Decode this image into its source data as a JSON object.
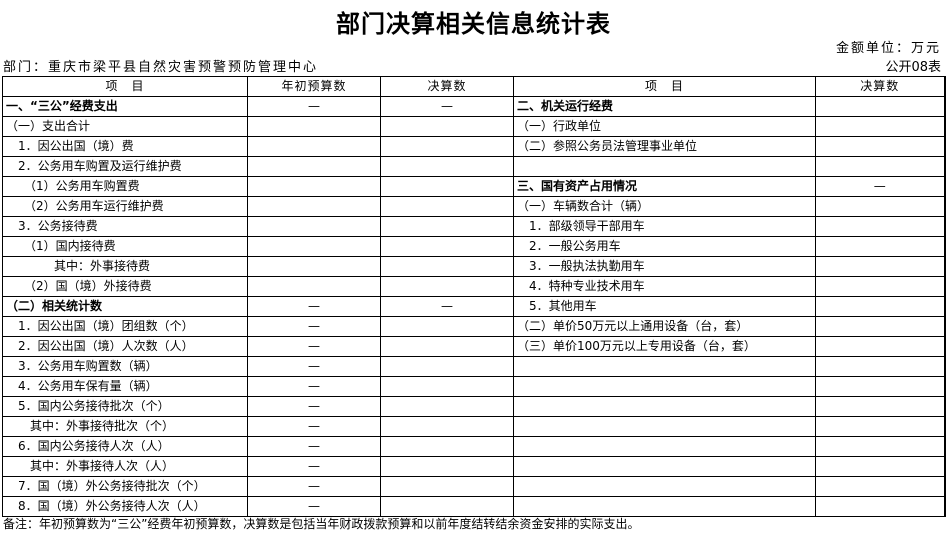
{
  "title": "部门决算相关信息统计表",
  "unit": "金额单位：万元",
  "department": "部门：重庆市梁平县自然灾害预警预防管理中心",
  "table_code": "公开08表",
  "headers": {
    "item_left": "项　目",
    "budget": "年初预算数",
    "final_left": "决算数",
    "item_right": "项　目",
    "final_right": "决算数"
  },
  "rows": [
    {
      "l": "一、“三公”经费支出",
      "lb": true,
      "b": "—",
      "f": "—",
      "r": "二、机关运行经费",
      "rb": true,
      "rf": ""
    },
    {
      "l": "（一）支出合计",
      "b": "",
      "f": "",
      "r": "（一）行政单位",
      "rf": ""
    },
    {
      "l": "　1．因公出国（境）费",
      "b": "",
      "f": "",
      "r": "（二）参照公务员法管理事业单位",
      "rf": ""
    },
    {
      "l": "　2．公务用车购置及运行维护费",
      "b": "",
      "f": "",
      "r": "",
      "rf": ""
    },
    {
      "l": "　　（1）公务用车购置费",
      "b": "",
      "f": "",
      "r": "三、国有资产占用情况",
      "rb": true,
      "rf": "—"
    },
    {
      "l": "　　（2）公务用车运行维护费",
      "b": "",
      "f": "",
      "r": "（一）车辆数合计（辆）",
      "rf": ""
    },
    {
      "l": "　3．公务接待费",
      "b": "",
      "f": "",
      "r": "　1．部级领导干部用车",
      "rf": ""
    },
    {
      "l": "　　（1）国内接待费",
      "b": "",
      "f": "",
      "r": "　2．一般公务用车",
      "rf": ""
    },
    {
      "l": "　　　　其中：外事接待费",
      "b": "",
      "f": "",
      "r": "　3．一般执法执勤用车",
      "rf": ""
    },
    {
      "l": "　　（2）国（境）外接待费",
      "b": "",
      "f": "",
      "r": "　4．特种专业技术用车",
      "rf": ""
    },
    {
      "l": "（二）相关统计数",
      "lb": true,
      "b": "—",
      "f": "—",
      "r": "　5．其他用车",
      "rf": ""
    },
    {
      "l": "　1．因公出国（境）团组数（个）",
      "b": "—",
      "f": "",
      "r": "（二）单价50万元以上通用设备（台，套）",
      "rf": ""
    },
    {
      "l": "　2．因公出国（境）人次数（人）",
      "b": "—",
      "f": "",
      "r": "（三）单价100万元以上专用设备（台，套）",
      "rf": ""
    },
    {
      "l": "　3．公务用车购置数（辆）",
      "b": "—",
      "f": "",
      "r": "",
      "rf": ""
    },
    {
      "l": "　4．公务用车保有量（辆）",
      "b": "—",
      "f": "",
      "r": "",
      "rf": ""
    },
    {
      "l": "　5．国内公务接待批次（个）",
      "b": "—",
      "f": "",
      "r": "",
      "rf": ""
    },
    {
      "l": "　　其中：外事接待批次（个）",
      "b": "—",
      "f": "",
      "r": "",
      "rf": ""
    },
    {
      "l": "　6．国内公务接待人次（人）",
      "b": "—",
      "f": "",
      "r": "",
      "rf": ""
    },
    {
      "l": "　　其中：外事接待人次（人）",
      "b": "—",
      "f": "",
      "r": "",
      "rf": ""
    },
    {
      "l": "　7．国（境）外公务接待批次（个）",
      "b": "—",
      "f": "",
      "r": "",
      "rf": ""
    },
    {
      "l": "　8．国（境）外公务接待人次（人）",
      "b": "—",
      "f": "",
      "r": "",
      "rf": ""
    }
  ],
  "note": "备注：年初预算数为“三公”经费年初预算数，决算数是包括当年财政拨款预算和以前年度结转结余资金安排的实际支出。"
}
